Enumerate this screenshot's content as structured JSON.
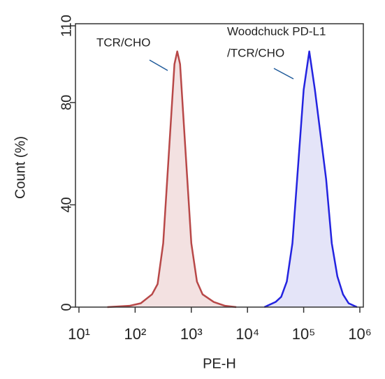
{
  "chart_data": {
    "type": "area",
    "xscale": "log",
    "xlabel": "PE-H",
    "ylabel": "Count  (%)",
    "annotations": [
      "TCR/CHO",
      "Woodchuck PD-L1",
      "/TCR/CHO"
    ],
    "xlim": [
      10,
      1000000
    ],
    "xticks": [
      {
        "value": 10,
        "label": "10¹"
      },
      {
        "value": 100,
        "label": "10²"
      },
      {
        "value": 1000,
        "label": "10³"
      },
      {
        "value": 10000,
        "label": "10⁴"
      },
      {
        "value": 100000,
        "label": "10⁵"
      },
      {
        "value": 1000000,
        "label": "10⁶"
      }
    ],
    "ylim": [
      0,
      110
    ],
    "yticks": [
      0,
      40,
      80,
      110
    ],
    "series": [
      {
        "color": "#b84848",
        "fill": "#f3e1e1",
        "x": [
          32,
          79,
          126,
          200,
          251,
          316,
          398,
          501,
          562,
          631,
          794,
          1000,
          1259,
          1585,
          2512,
          3981,
          6310
        ],
        "values": [
          0,
          0.5,
          1.5,
          5,
          9,
          25,
          60,
          95,
          100,
          95,
          60,
          25,
          10,
          5,
          2,
          0.5,
          0
        ]
      },
      {
        "color": "#2323e0",
        "fill": "#e4e4f8",
        "x": [
          19953,
          31623,
          39811,
          50119,
          63096,
          79433,
          100000,
          125893,
          158489,
          251189,
          316228,
          398107,
          501187,
          630957,
          891251
        ],
        "values": [
          0,
          2,
          4,
          10,
          25,
          55,
          85,
          100,
          85,
          50,
          25,
          12,
          5,
          1.5,
          0
        ]
      }
    ]
  }
}
